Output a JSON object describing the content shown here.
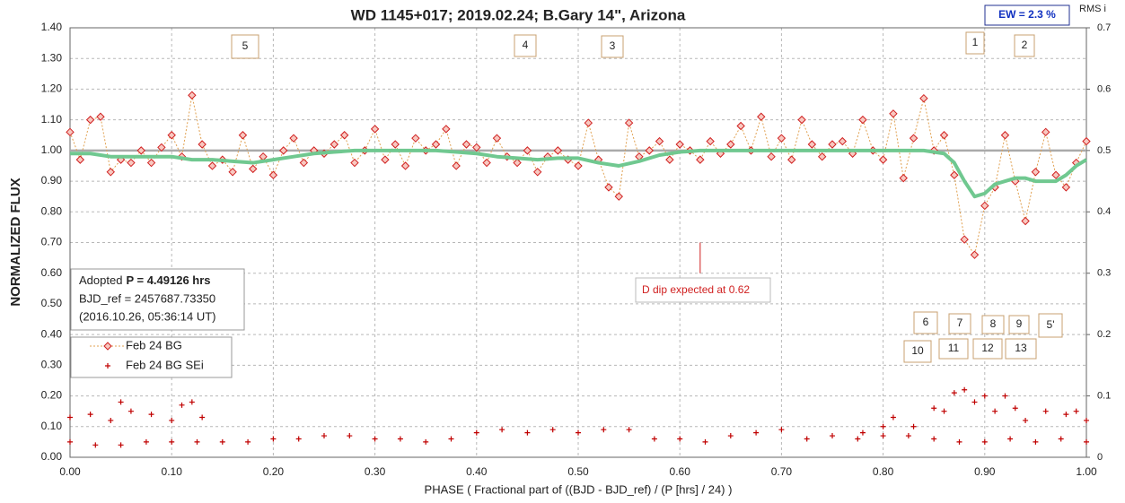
{
  "chart_data": {
    "type": "scatter",
    "title": "WD 1145+017; 2019.02.24; B.Gary 14\", Arizona",
    "ew_label": "EW =  2.3 %",
    "y2_label": "RMS i",
    "xlabel": "PHASE ( Fractional part of ((BJD - BJD_ref) / (P [hrs] / 24) )",
    "ylabel": "NORMALIZED FLUX",
    "info": {
      "prefix": "Adopted",
      "period": "P = 4.49126 hrs",
      "bjd": "BJD_ref = 2457687.73350",
      "date": "(2016.10.26, 05:36:14 UT)"
    },
    "dip_text": "D dip expected at 0.62",
    "dip_line": {
      "x": 0.62,
      "y": [
        0.7,
        0.6
      ]
    },
    "reference_line": 1.0,
    "annotations": [
      "5",
      "4",
      "3",
      "1",
      "2",
      "6",
      "7",
      "8",
      "9",
      "5'",
      "10",
      "11",
      "12",
      "13"
    ],
    "grid": true,
    "xlim": [
      0,
      1
    ],
    "ylim": [
      0,
      1.4
    ],
    "y2lim": [
      0,
      0.7
    ],
    "xticks": [
      {
        "value": 0,
        "label": "0.00"
      },
      {
        "value": 0.1,
        "label": "0.10"
      },
      {
        "value": 0.2,
        "label": "0.20"
      },
      {
        "value": 0.3,
        "label": "0.30"
      },
      {
        "value": 0.4,
        "label": "0.40"
      },
      {
        "value": 0.5,
        "label": "0.50"
      },
      {
        "value": 0.6,
        "label": "0.60"
      },
      {
        "value": 0.7,
        "label": "0.70"
      },
      {
        "value": 0.8,
        "label": "0.80"
      },
      {
        "value": 0.9,
        "label": "0.90"
      },
      {
        "value": 1,
        "label": "1.00"
      }
    ],
    "yticks": [
      {
        "value": 0,
        "label": "0.00"
      },
      {
        "value": 0.1,
        "label": "0.10"
      },
      {
        "value": 0.2,
        "label": "0.20"
      },
      {
        "value": 0.3,
        "label": "0.30"
      },
      {
        "value": 0.4,
        "label": "0.40"
      },
      {
        "value": 0.5,
        "label": "0.50"
      },
      {
        "value": 0.6,
        "label": "0.60"
      },
      {
        "value": 0.7,
        "label": "0.70"
      },
      {
        "value": 0.8,
        "label": "0.80"
      },
      {
        "value": 0.9,
        "label": "0.90"
      },
      {
        "value": 1,
        "label": "1.00"
      },
      {
        "value": 1.1,
        "label": "1.10"
      },
      {
        "value": 1.2,
        "label": "1.20"
      },
      {
        "value": 1.3,
        "label": "1.30"
      },
      {
        "value": 1.4,
        "label": "1.40"
      }
    ],
    "y2ticks": [
      0,
      0.1,
      0.2,
      0.3,
      0.4,
      0.5,
      0.6,
      0.7
    ],
    "series": [
      {
        "name": "Feb 24 BG",
        "color": "#d02020",
        "marker": "diamond",
        "x": [
          0,
          0.01,
          0.02,
          0.03,
          0.04,
          0.05,
          0.06,
          0.07,
          0.08,
          0.09,
          0.1,
          0.11,
          0.12,
          0.13,
          0.14,
          0.15,
          0.16,
          0.17,
          0.18,
          0.19,
          0.2,
          0.21,
          0.22,
          0.23,
          0.24,
          0.25,
          0.26,
          0.27,
          0.28,
          0.29,
          0.3,
          0.31,
          0.32,
          0.33,
          0.34,
          0.35,
          0.36,
          0.37,
          0.38,
          0.39,
          0.4,
          0.41,
          0.42,
          0.43,
          0.44,
          0.45,
          0.46,
          0.47,
          0.48,
          0.49,
          0.5,
          0.51,
          0.52,
          0.53,
          0.54,
          0.55,
          0.56,
          0.57,
          0.58,
          0.59,
          0.6,
          0.61,
          0.62,
          0.63,
          0.64,
          0.65,
          0.66,
          0.67,
          0.68,
          0.69,
          0.7,
          0.71,
          0.72,
          0.73,
          0.74,
          0.75,
          0.76,
          0.77,
          0.78,
          0.79,
          0.8,
          0.81,
          0.82,
          0.83,
          0.84,
          0.85,
          0.86,
          0.87,
          0.88,
          0.89,
          0.9,
          0.91,
          0.92,
          0.93,
          0.94,
          0.95,
          0.96,
          0.97,
          0.98,
          0.99,
          1
        ],
        "values": [
          1.06,
          0.97,
          1.1,
          1.11,
          0.93,
          0.97,
          0.96,
          1.0,
          0.96,
          1.01,
          1.05,
          0.98,
          1.18,
          1.02,
          0.95,
          0.97,
          0.93,
          1.05,
          0.94,
          0.98,
          0.92,
          1.0,
          1.04,
          0.96,
          1.0,
          0.99,
          1.02,
          1.05,
          0.96,
          1.0,
          1.07,
          0.97,
          1.02,
          0.95,
          1.04,
          1.0,
          1.02,
          1.07,
          0.95,
          1.02,
          1.01,
          0.96,
          1.04,
          0.98,
          0.96,
          1.0,
          0.93,
          0.98,
          1.0,
          0.97,
          0.95,
          1.09,
          0.97,
          0.88,
          0.85,
          1.09,
          0.98,
          1.0,
          1.03,
          0.97,
          1.02,
          1.0,
          0.97,
          1.03,
          0.99,
          1.02,
          1.08,
          1.0,
          1.11,
          0.98,
          1.04,
          0.97,
          1.1,
          1.02,
          0.98,
          1.02,
          1.03,
          0.99,
          1.1,
          1.0,
          0.97,
          1.12,
          0.91,
          1.04,
          1.17,
          1.0,
          1.05,
          0.92,
          0.71,
          0.66,
          0.82,
          0.88,
          1.05,
          0.9,
          0.77,
          0.93,
          1.06,
          0.92,
          0.88,
          0.96,
          1.03
        ]
      },
      {
        "name": "Feb 24 BG SEi",
        "color": "#c00000",
        "marker": "plus",
        "axis": "y2",
        "x": [
          0,
          0.025,
          0.05,
          0.075,
          0.1,
          0.125,
          0.15,
          0.175,
          0.2,
          0.225,
          0.25,
          0.275,
          0.3,
          0.325,
          0.35,
          0.375,
          0.4,
          0.425,
          0.45,
          0.475,
          0.5,
          0.525,
          0.55,
          0.575,
          0.6,
          0.625,
          0.65,
          0.675,
          0.7,
          0.725,
          0.75,
          0.775,
          0.8,
          0.825,
          0.85,
          0.875,
          0.9,
          0.925,
          0.95,
          0.975,
          1,
          0,
          0.02,
          0.04,
          0.05,
          0.06,
          0.08,
          0.1,
          0.11,
          0.12,
          0.13,
          0.78,
          0.8,
          0.81,
          0.83,
          0.85,
          0.86,
          0.87,
          0.88,
          0.89,
          0.9,
          0.91,
          0.92,
          0.93,
          0.94,
          0.96,
          0.98,
          0.99,
          1
        ],
        "values": [
          0.025,
          0.02,
          0.02,
          0.025,
          0.025,
          0.025,
          0.025,
          0.025,
          0.03,
          0.03,
          0.035,
          0.035,
          0.03,
          0.03,
          0.025,
          0.03,
          0.04,
          0.045,
          0.04,
          0.045,
          0.04,
          0.045,
          0.045,
          0.03,
          0.03,
          0.025,
          0.035,
          0.04,
          0.045,
          0.03,
          0.035,
          0.03,
          0.035,
          0.035,
          0.03,
          0.025,
          0.025,
          0.03,
          0.025,
          0.03,
          0.025,
          0.065,
          0.07,
          0.06,
          0.09,
          0.075,
          0.07,
          0.06,
          0.085,
          0.09,
          0.065,
          0.04,
          0.05,
          0.065,
          0.05,
          0.08,
          0.075,
          0.105,
          0.11,
          0.09,
          0.1,
          0.075,
          0.1,
          0.08,
          0.06,
          0.075,
          0.07,
          0.075,
          0.06
        ]
      },
      {
        "color": "#70c890",
        "marker": "none",
        "x": [
          0,
          0.02,
          0.04,
          0.06,
          0.08,
          0.1,
          0.12,
          0.14,
          0.16,
          0.18,
          0.2,
          0.22,
          0.24,
          0.26,
          0.28,
          0.3,
          0.32,
          0.34,
          0.36,
          0.38,
          0.4,
          0.42,
          0.44,
          0.46,
          0.48,
          0.5,
          0.52,
          0.54,
          0.56,
          0.58,
          0.6,
          0.62,
          0.64,
          0.66,
          0.68,
          0.7,
          0.72,
          0.74,
          0.76,
          0.78,
          0.8,
          0.82,
          0.84,
          0.86,
          0.87,
          0.88,
          0.89,
          0.9,
          0.91,
          0.92,
          0.93,
          0.94,
          0.95,
          0.96,
          0.97,
          0.98,
          0.99,
          1
        ],
        "values": [
          0.99,
          0.99,
          0.98,
          0.98,
          0.98,
          0.98,
          0.97,
          0.97,
          0.965,
          0.96,
          0.97,
          0.98,
          0.99,
          0.995,
          1,
          1,
          1,
          1,
          1,
          0.995,
          0.99,
          0.98,
          0.975,
          0.97,
          0.975,
          0.975,
          0.96,
          0.95,
          0.965,
          0.985,
          0.995,
          1,
          1,
          1,
          1,
          1,
          1,
          1,
          1,
          1,
          1,
          1,
          1,
          0.99,
          0.96,
          0.9,
          0.85,
          0.86,
          0.89,
          0.9,
          0.91,
          0.91,
          0.9,
          0.9,
          0.9,
          0.92,
          0.95,
          0.97
        ]
      }
    ]
  }
}
